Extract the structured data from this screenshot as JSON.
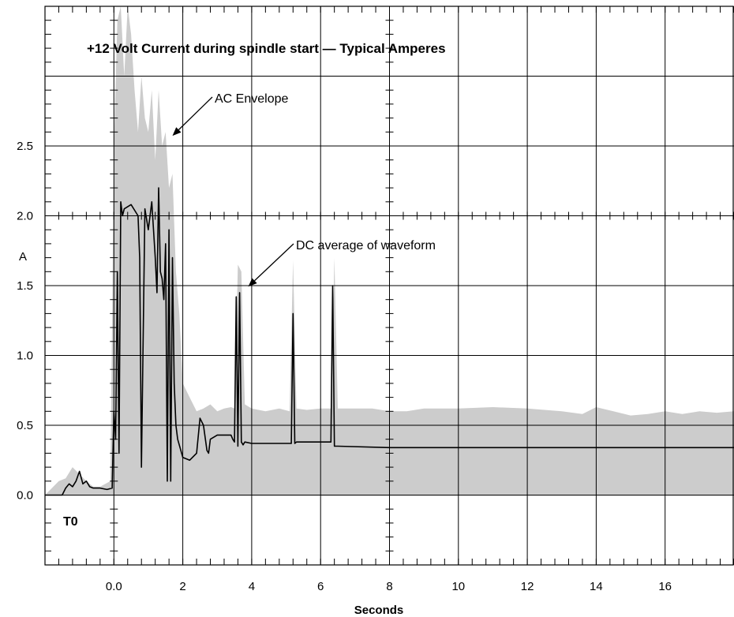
{
  "chart_data": {
    "type": "line",
    "title": "+12 Volt Current during spindle start — Typical Amperes",
    "xlabel": "Seconds",
    "ylabel": "A",
    "xlim": [
      -2,
      18
    ],
    "ylim": [
      -0.5,
      3.5
    ],
    "x_ticks": [
      {
        "value": 0,
        "label": "0.0"
      },
      {
        "value": 2,
        "label": "2"
      },
      {
        "value": 4,
        "label": "4"
      },
      {
        "value": 6,
        "label": "6"
      },
      {
        "value": 8,
        "label": "8"
      },
      {
        "value": 10,
        "label": "10"
      },
      {
        "value": 12,
        "label": "12"
      },
      {
        "value": 14,
        "label": "14"
      },
      {
        "value": 16,
        "label": "16"
      }
    ],
    "y_ticks": [
      {
        "value": 0.0,
        "label": "0.0"
      },
      {
        "value": 0.5,
        "label": "0.5"
      },
      {
        "value": 1.0,
        "label": "1.0"
      },
      {
        "value": 1.5,
        "label": "1.5"
      },
      {
        "value": 2.0,
        "label": "2.0"
      },
      {
        "value": 2.5,
        "label": "2.5"
      }
    ],
    "grid": true,
    "annotations": [
      {
        "id": "ac",
        "text": "AC Envelope",
        "x": 1.7,
        "y": 2.55
      },
      {
        "id": "dc",
        "text": "DC average of waveform",
        "x": 3.9,
        "y": 1.47
      },
      {
        "id": "t0",
        "text": "T0",
        "x": -1.5,
        "y": -0.08
      }
    ],
    "series": [
      {
        "name": "AC Envelope",
        "style": "band",
        "color": "#cccccc",
        "x": [
          -2.0,
          -1.6,
          -1.4,
          -1.2,
          -1.0,
          -0.8,
          -0.6,
          -0.4,
          -0.1,
          0.0,
          0.1,
          0.2,
          0.3,
          0.4,
          0.5,
          0.6,
          0.7,
          0.8,
          0.9,
          1.0,
          1.1,
          1.2,
          1.3,
          1.4,
          1.5,
          1.6,
          1.7,
          1.8,
          1.9,
          2.0,
          2.2,
          2.4,
          2.6,
          2.8,
          3.0,
          3.2,
          3.4,
          3.5,
          3.6,
          3.7,
          3.8,
          4.0,
          4.4,
          4.8,
          5.1,
          5.2,
          5.3,
          5.6,
          6.0,
          6.3,
          6.4,
          6.5,
          7.0,
          7.5,
          8.0,
          8.5,
          9.0,
          10.0,
          11.0,
          12.0,
          13.0,
          13.6,
          14.0,
          14.5,
          15.0,
          15.5,
          16.0,
          16.5,
          17.0,
          17.5,
          18.0
        ],
        "upper": [
          0.0,
          0.1,
          0.12,
          0.2,
          0.15,
          0.1,
          0.06,
          0.06,
          0.1,
          2.5,
          3.4,
          3.5,
          3.0,
          3.5,
          3.3,
          2.9,
          2.6,
          3.0,
          2.7,
          2.6,
          2.9,
          2.4,
          2.9,
          2.5,
          2.6,
          2.2,
          2.3,
          1.6,
          1.3,
          0.8,
          0.7,
          0.6,
          0.62,
          0.65,
          0.6,
          0.62,
          0.63,
          0.62,
          1.65,
          1.6,
          0.65,
          0.62,
          0.6,
          0.62,
          0.6,
          1.68,
          0.62,
          0.61,
          0.62,
          0.62,
          1.7,
          0.62,
          0.62,
          0.62,
          0.6,
          0.6,
          0.62,
          0.62,
          0.63,
          0.62,
          0.6,
          0.58,
          0.63,
          0.6,
          0.57,
          0.58,
          0.6,
          0.58,
          0.6,
          0.59,
          0.6
        ],
        "lower": [
          0.0,
          0.0,
          0.0,
          0.0,
          0.0,
          0.0,
          0.0,
          0.0,
          0.0,
          0.0,
          0.0,
          0.0,
          0.0,
          0.0,
          0.0,
          0.0,
          0.0,
          0.0,
          0.0,
          0.0,
          0.0,
          0.0,
          0.0,
          0.0,
          0.0,
          0.0,
          0.0,
          0.0,
          0.0,
          0.0,
          0.0,
          0.0,
          0.0,
          0.0,
          0.0,
          0.0,
          0.0,
          0.0,
          0.0,
          0.0,
          0.0,
          0.0,
          0.0,
          0.0,
          0.0,
          0.0,
          0.0,
          0.0,
          0.0,
          0.0,
          0.0,
          0.0,
          0.0,
          0.0,
          0.0,
          0.0,
          0.0,
          0.0,
          0.0,
          0.0,
          0.0,
          0.0,
          0.0,
          0.0,
          0.0,
          0.0,
          0.0,
          0.0,
          0.0,
          0.0,
          0.0
        ]
      },
      {
        "name": "DC average of waveform",
        "style": "line",
        "color": "#000000",
        "x": [
          -2.0,
          -1.5,
          -1.4,
          -1.3,
          -1.2,
          -1.1,
          -1.0,
          -0.9,
          -0.8,
          -0.7,
          -0.6,
          -0.4,
          -0.2,
          -0.05,
          0.0,
          0.05,
          0.1,
          0.15,
          0.2,
          0.25,
          0.3,
          0.5,
          0.7,
          0.75,
          0.8,
          0.9,
          1.0,
          1.1,
          1.2,
          1.25,
          1.3,
          1.35,
          1.4,
          1.45,
          1.5,
          1.55,
          1.6,
          1.65,
          1.7,
          1.75,
          1.8,
          1.85,
          2.0,
          2.2,
          2.4,
          2.5,
          2.6,
          2.7,
          2.75,
          2.8,
          3.0,
          3.2,
          3.4,
          3.45,
          3.5,
          3.55,
          3.6,
          3.65,
          3.7,
          3.75,
          3.8,
          4.0,
          4.5,
          5.0,
          5.15,
          5.2,
          5.25,
          5.3,
          6.3,
          6.35,
          6.4,
          6.45,
          6.5,
          8.0,
          10.0,
          12.0,
          14.0,
          16.0,
          18.0
        ],
        "y": [
          0.0,
          0.0,
          0.05,
          0.08,
          0.06,
          0.1,
          0.17,
          0.08,
          0.1,
          0.06,
          0.05,
          0.05,
          0.04,
          0.05,
          0.6,
          0.4,
          1.6,
          0.3,
          2.1,
          2.0,
          2.05,
          2.08,
          2.0,
          1.7,
          0.2,
          2.05,
          1.9,
          2.1,
          1.7,
          1.45,
          2.2,
          1.6,
          1.55,
          1.4,
          1.8,
          0.1,
          1.9,
          0.1,
          1.7,
          0.8,
          0.5,
          0.4,
          0.27,
          0.25,
          0.3,
          0.55,
          0.5,
          0.32,
          0.3,
          0.4,
          0.43,
          0.43,
          0.43,
          0.4,
          0.38,
          1.42,
          0.35,
          1.45,
          0.38,
          0.36,
          0.38,
          0.37,
          0.37,
          0.37,
          0.37,
          1.3,
          0.37,
          0.38,
          0.38,
          1.5,
          0.35,
          0.35,
          0.35,
          0.34,
          0.34,
          0.34,
          0.34,
          0.34,
          0.34
        ]
      }
    ]
  }
}
